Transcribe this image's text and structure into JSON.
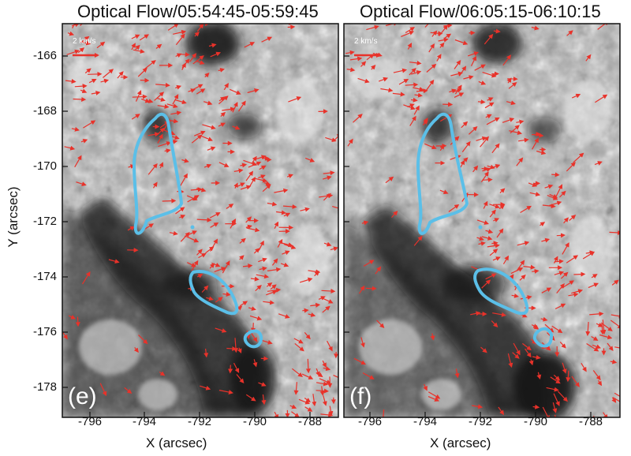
{
  "panels": [
    {
      "title": "Optical Flow/05:54:45-05:59:45",
      "label": "(e)",
      "scale_label": "2 km/s"
    },
    {
      "title": "Optical Flow/06:05:15-06:10:15",
      "label": "(f)",
      "scale_label": "2 km/s"
    }
  ],
  "axes": {
    "ylabel": "Y (arcsec)",
    "xlabel": "X (arcsec)",
    "yticks": [
      "-166",
      "-168",
      "-170",
      "-172",
      "-174",
      "-176",
      "-178"
    ],
    "xticks": [
      "-796",
      "-794",
      "-792",
      "-790",
      "-788"
    ]
  },
  "colors": {
    "vector": "#e8322a",
    "contour": "#5bbfe8",
    "background_dark": "#151515",
    "background_light": "#d8d8d8"
  }
}
